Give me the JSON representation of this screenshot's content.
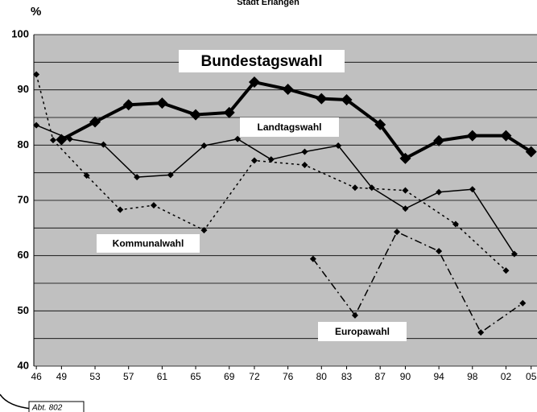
{
  "chart_data": {
    "type": "line",
    "title": "Stadt Erlangen",
    "y_label": "%",
    "note": "Abt. 802",
    "xlim": [
      1945.7,
      2005.7
    ],
    "xticks": [
      {
        "value": 1946,
        "label": "46"
      },
      {
        "value": 1949,
        "label": "49"
      },
      {
        "value": 1953,
        "label": "53"
      },
      {
        "value": 1957,
        "label": "57"
      },
      {
        "value": 1961,
        "label": "61"
      },
      {
        "value": 1965,
        "label": "65"
      },
      {
        "value": 1969,
        "label": "69"
      },
      {
        "value": 1972,
        "label": "72"
      },
      {
        "value": 1976,
        "label": "76"
      },
      {
        "value": 1980,
        "label": "80"
      },
      {
        "value": 1983,
        "label": "83"
      },
      {
        "value": 1987,
        "label": "87"
      },
      {
        "value": 1990,
        "label": "90"
      },
      {
        "value": 1994,
        "label": "94"
      },
      {
        "value": 1998,
        "label": "98"
      },
      {
        "value": 2002,
        "label": "02"
      },
      {
        "value": 2005,
        "label": "05"
      }
    ],
    "ylim": [
      40,
      100
    ],
    "yticks": [
      40,
      50,
      60,
      70,
      80,
      90,
      100
    ],
    "minor_yticks": [
      45,
      55,
      65,
      75,
      85,
      95
    ],
    "grid": true,
    "series": [
      {
        "name": "Bundestagswahl",
        "color": "#000000",
        "width": 4,
        "dash": "none",
        "marker_size": 7,
        "x": [
          1949,
          1953,
          1957,
          1961,
          1965,
          1969,
          1972,
          1976,
          1980,
          1983,
          1987,
          1990,
          1994,
          1998,
          2002,
          2005
        ],
        "values": [
          81.0,
          84.2,
          87.3,
          87.6,
          85.5,
          85.9,
          91.4,
          90.1,
          88.4,
          88.2,
          83.7,
          77.6,
          80.8,
          81.7,
          81.7,
          78.8
        ]
      },
      {
        "name": "Landtagswahl",
        "color": "#000000",
        "width": 1.5,
        "dash": "none",
        "marker_size": 4,
        "x": [
          1946,
          1950,
          1954,
          1958,
          1962,
          1966,
          1970,
          1974,
          1978,
          1982,
          1986,
          1990,
          1994,
          1998,
          2003
        ],
        "values": [
          83.6,
          81.1,
          80.1,
          74.2,
          74.6,
          79.9,
          81.1,
          77.4,
          78.8,
          79.9,
          72.3,
          68.5,
          71.5,
          72.0,
          60.3
        ]
      },
      {
        "name": "Kommunalwahl",
        "color": "#000000",
        "width": 1.5,
        "dash": "3,4",
        "marker_size": 4,
        "x": [
          1946,
          1948,
          1952,
          1956,
          1960,
          1966,
          1972,
          1978,
          1984,
          1990,
          1996,
          2002
        ],
        "values": [
          92.8,
          80.9,
          74.5,
          68.3,
          69.1,
          64.6,
          77.2,
          76.4,
          72.3,
          71.8,
          65.7,
          57.3
        ]
      },
      {
        "name": "Europawahl",
        "color": "#000000",
        "width": 1.5,
        "dash": "9,4,2,4",
        "marker_size": 4,
        "x": [
          1979,
          1984,
          1989,
          1994,
          1999,
          2004
        ],
        "values": [
          59.4,
          49.2,
          64.3,
          60.8,
          46.1,
          51.4
        ]
      }
    ]
  }
}
